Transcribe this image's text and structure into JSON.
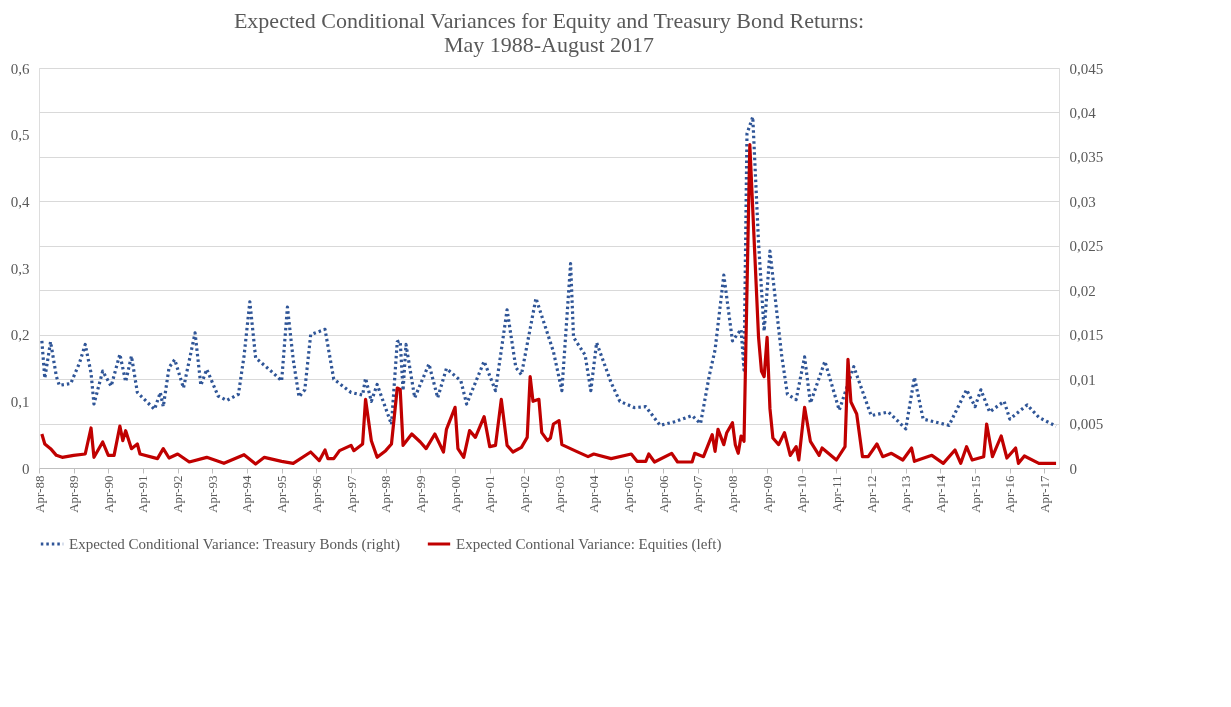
{
  "chart_data": {
    "type": "line",
    "title": "Expected Conditional Variances for Equity and Treasury Bond Returns:\nMay 1988-August 2017",
    "xlim": [
      "1988-04",
      "2017-09"
    ],
    "xticks": [
      {
        "value": "1988-04",
        "label": "Apr-88"
      },
      {
        "value": "1989-04",
        "label": "Apr-89"
      },
      {
        "value": "1990-04",
        "label": "Apr-90"
      },
      {
        "value": "1991-04",
        "label": "Apr-91"
      },
      {
        "value": "1992-04",
        "label": "Apr-92"
      },
      {
        "value": "1993-04",
        "label": "Apr-93"
      },
      {
        "value": "1994-04",
        "label": "Apr-94"
      },
      {
        "value": "1995-04",
        "label": "Apr-95"
      },
      {
        "value": "1996-04",
        "label": "Apr-96"
      },
      {
        "value": "1997-04",
        "label": "Apr-97"
      },
      {
        "value": "1998-04",
        "label": "Apr-98"
      },
      {
        "value": "1999-04",
        "label": "Apr-99"
      },
      {
        "value": "2000-04",
        "label": "Apr-00"
      },
      {
        "value": "2001-04",
        "label": "Apr-01"
      },
      {
        "value": "2002-04",
        "label": "Apr-02"
      },
      {
        "value": "2003-04",
        "label": "Apr-03"
      },
      {
        "value": "2004-04",
        "label": "Apr-04"
      },
      {
        "value": "2005-04",
        "label": "Apr-05"
      },
      {
        "value": "2006-04",
        "label": "Apr-06"
      },
      {
        "value": "2007-04",
        "label": "Apr-07"
      },
      {
        "value": "2008-04",
        "label": "Apr-08"
      },
      {
        "value": "2009-04",
        "label": "Apr-09"
      },
      {
        "value": "2010-04",
        "label": "Apr-10"
      },
      {
        "value": "2011-04",
        "label": "Apr-11"
      },
      {
        "value": "2012-04",
        "label": "Apr-12"
      },
      {
        "value": "2013-04",
        "label": "Apr-13"
      },
      {
        "value": "2014-04",
        "label": "Apr-14"
      },
      {
        "value": "2015-04",
        "label": "Apr-15"
      },
      {
        "value": "2016-04",
        "label": "Apr-16"
      },
      {
        "value": "2017-04",
        "label": "Apr-17"
      }
    ],
    "ylim": [
      0,
      0.6
    ],
    "yticks": [
      {
        "value": 0,
        "label": "0"
      },
      {
        "value": 0.1,
        "label": "0,1"
      },
      {
        "value": 0.2,
        "label": "0,2"
      },
      {
        "value": 0.3,
        "label": "0,3"
      },
      {
        "value": 0.4,
        "label": "0,4"
      },
      {
        "value": 0.5,
        "label": "0,5"
      },
      {
        "value": 0.6,
        "label": "0,6"
      }
    ],
    "y2lim": [
      0,
      0.045
    ],
    "y2ticks": [
      {
        "value": 0,
        "label": "0"
      },
      {
        "value": 0.005,
        "label": "0,005"
      },
      {
        "value": 0.01,
        "label": "0,01"
      },
      {
        "value": 0.015,
        "label": "0,015"
      },
      {
        "value": 0.02,
        "label": "0,02"
      },
      {
        "value": 0.025,
        "label": "0,025"
      },
      {
        "value": 0.03,
        "label": "0,03"
      },
      {
        "value": 0.035,
        "label": "0,035"
      },
      {
        "value": 0.04,
        "label": "0,04"
      },
      {
        "value": 0.045,
        "label": "0,045"
      }
    ],
    "grid": true,
    "legend": "bottom",
    "series": [
      {
        "name": "Expected Conditional Variance: Treasury Bonds (right)",
        "color": "#2f5597",
        "axis": "y2",
        "line_style": "dotted",
        "x": [
          "1988-05",
          "1988-06",
          "1988-08",
          "1988-10",
          "1988-11",
          "1989-03",
          "1989-06",
          "1989-08",
          "1989-10",
          "1989-11",
          "1990-02",
          "1990-05",
          "1990-08",
          "1990-10",
          "1990-12",
          "1991-02",
          "1991-08",
          "1991-10",
          "1991-11",
          "1992-01",
          "1992-03",
          "1992-06",
          "1992-10",
          "1992-12",
          "1993-02",
          "1993-06",
          "1993-09",
          "1994-01",
          "1994-03",
          "1994-05",
          "1994-07",
          "1995-01",
          "1995-04",
          "1995-06",
          "1995-08",
          "1995-10",
          "1995-12",
          "1996-02",
          "1996-07",
          "1996-10",
          "1997-04",
          "1997-08",
          "1997-09",
          "1997-11",
          "1998-01",
          "1998-06",
          "1998-08",
          "1998-09",
          "1998-10",
          "1998-11",
          "1999-02",
          "1999-07",
          "1999-10",
          "2000-01",
          "2000-06",
          "2000-08",
          "2001-02",
          "2001-06",
          "2001-10",
          "2002-01",
          "2002-03",
          "2002-08",
          "2003-02",
          "2003-05",
          "2003-08",
          "2003-09",
          "2004-01",
          "2004-03",
          "2004-05",
          "2004-10",
          "2005-01",
          "2005-06",
          "2005-10",
          "2006-03",
          "2006-08",
          "2007-02",
          "2007-05",
          "2007-08",
          "2007-10",
          "2008-01",
          "2008-04",
          "2008-07",
          "2008-08",
          "2008-09",
          "2008-11",
          "2009-01",
          "2009-03",
          "2009-05",
          "2009-09",
          "2009-11",
          "2010-02",
          "2010-05",
          "2010-07",
          "2010-12",
          "2011-05",
          "2011-10",
          "2012-04",
          "2012-10",
          "2013-04",
          "2013-07",
          "2013-10",
          "2014-07",
          "2015-01",
          "2015-04",
          "2015-06",
          "2015-09",
          "2016-02",
          "2016-04",
          "2016-10",
          "2017-02",
          "2017-08"
        ],
        "values": [
          0.0143,
          0.0101,
          0.0142,
          0.0103,
          0.0093,
          0.0095,
          0.0118,
          0.0139,
          0.0107,
          0.0072,
          0.0109,
          0.0092,
          0.0128,
          0.0097,
          0.0126,
          0.0085,
          0.0066,
          0.0085,
          0.0069,
          0.0113,
          0.0122,
          0.009,
          0.0152,
          0.0093,
          0.0111,
          0.0081,
          0.0076,
          0.0083,
          0.0126,
          0.0187,
          0.0124,
          0.0107,
          0.0098,
          0.0181,
          0.0122,
          0.008,
          0.0088,
          0.015,
          0.0156,
          0.01,
          0.0085,
          0.0082,
          0.0101,
          0.0075,
          0.0094,
          0.0049,
          0.0142,
          0.0143,
          0.0087,
          0.0139,
          0.0079,
          0.0117,
          0.0079,
          0.0112,
          0.0098,
          0.0072,
          0.012,
          0.0087,
          0.0178,
          0.0113,
          0.0105,
          0.0191,
          0.0131,
          0.0087,
          0.023,
          0.0147,
          0.0127,
          0.0087,
          0.0141,
          0.0096,
          0.0075,
          0.0068,
          0.0069,
          0.0048,
          0.0052,
          0.0059,
          0.005,
          0.0104,
          0.0133,
          0.0217,
          0.0143,
          0.0156,
          0.011,
          0.0376,
          0.0395,
          0.0253,
          0.0154,
          0.0244,
          0.0127,
          0.0083,
          0.0077,
          0.0125,
          0.0073,
          0.012,
          0.0065,
          0.0114,
          0.0059,
          0.0063,
          0.0044,
          0.0102,
          0.0055,
          0.0048,
          0.0088,
          0.0069,
          0.0088,
          0.0063,
          0.0075,
          0.0055,
          0.0071,
          0.0057,
          0.0047
        ]
      },
      {
        "name": "Expected Contional Variance: Equities (left)",
        "color": "#c00000",
        "line_style": "solid",
        "x": [
          "1988-05",
          "1988-06",
          "1988-08",
          "1988-10",
          "1988-12",
          "1989-04",
          "1989-08",
          "1989-10",
          "1989-11",
          "1990-02",
          "1990-04",
          "1990-06",
          "1990-08",
          "1990-09",
          "1990-10",
          "1990-12",
          "1991-02",
          "1991-03",
          "1991-09",
          "1991-11",
          "1992-01",
          "1992-04",
          "1992-08",
          "1993-02",
          "1993-08",
          "1994-03",
          "1994-07",
          "1994-10",
          "1995-04",
          "1995-08",
          "1996-02",
          "1996-05",
          "1996-07",
          "1996-08",
          "1996-10",
          "1996-12",
          "1997-04",
          "1997-05",
          "1997-08",
          "1997-09",
          "1997-11",
          "1998-01",
          "1998-04",
          "1998-06",
          "1998-08",
          "1998-09",
          "1998-10",
          "1999-01",
          "1999-04",
          "1999-06",
          "1999-09",
          "1999-12",
          "2000-01",
          "2000-04",
          "2000-05",
          "2000-07",
          "2000-09",
          "2000-11",
          "2001-02",
          "2001-04",
          "2001-06",
          "2001-08",
          "2001-10",
          "2001-12",
          "2002-03",
          "2002-05",
          "2002-06",
          "2002-07",
          "2002-09",
          "2002-10",
          "2002-12",
          "2003-01",
          "2003-02",
          "2003-04",
          "2003-05",
          "2003-10",
          "2004-02",
          "2004-04",
          "2004-10",
          "2005-05",
          "2005-07",
          "2005-10",
          "2005-11",
          "2006-01",
          "2006-07",
          "2006-09",
          "2007-02",
          "2007-03",
          "2007-06",
          "2007-09",
          "2007-10",
          "2007-11",
          "2008-01",
          "2008-02",
          "2008-04",
          "2008-05",
          "2008-06",
          "2008-07",
          "2008-08",
          "2008-10",
          "2009-01",
          "2009-02",
          "2009-03",
          "2009-04",
          "2009-05",
          "2009-06",
          "2009-08",
          "2009-10",
          "2009-12",
          "2010-02",
          "2010-03",
          "2010-05",
          "2010-07",
          "2010-10",
          "2010-11",
          "2011-04",
          "2011-07",
          "2011-08",
          "2011-09",
          "2011-11",
          "2012-01",
          "2012-03",
          "2012-06",
          "2012-08",
          "2012-11",
          "2013-03",
          "2013-06",
          "2013-07",
          "2014-01",
          "2014-05",
          "2014-09",
          "2014-11",
          "2015-01",
          "2015-03",
          "2015-07",
          "2015-08",
          "2015-10",
          "2016-01",
          "2016-03",
          "2016-06",
          "2016-07",
          "2016-09",
          "2017-02",
          "2017-08"
        ],
        "values": [
          0.051,
          0.036,
          0.029,
          0.019,
          0.016,
          0.019,
          0.021,
          0.06,
          0.016,
          0.039,
          0.019,
          0.019,
          0.063,
          0.041,
          0.056,
          0.029,
          0.036,
          0.021,
          0.014,
          0.029,
          0.015,
          0.021,
          0.009,
          0.016,
          0.007,
          0.02,
          0.006,
          0.016,
          0.01,
          0.007,
          0.024,
          0.011,
          0.027,
          0.014,
          0.014,
          0.026,
          0.034,
          0.026,
          0.036,
          0.103,
          0.041,
          0.016,
          0.026,
          0.036,
          0.12,
          0.118,
          0.034,
          0.051,
          0.039,
          0.029,
          0.051,
          0.024,
          0.058,
          0.091,
          0.029,
          0.016,
          0.056,
          0.046,
          0.077,
          0.032,
          0.034,
          0.103,
          0.034,
          0.024,
          0.031,
          0.046,
          0.137,
          0.1,
          0.103,
          0.053,
          0.041,
          0.045,
          0.066,
          0.071,
          0.035,
          0.025,
          0.017,
          0.021,
          0.014,
          0.021,
          0.01,
          0.01,
          0.021,
          0.009,
          0.022,
          0.009,
          0.009,
          0.022,
          0.017,
          0.05,
          0.025,
          0.058,
          0.035,
          0.053,
          0.068,
          0.035,
          0.022,
          0.048,
          0.04,
          0.485,
          0.196,
          0.145,
          0.137,
          0.196,
          0.089,
          0.045,
          0.035,
          0.053,
          0.019,
          0.032,
          0.012,
          0.091,
          0.04,
          0.019,
          0.03,
          0.012,
          0.032,
          0.163,
          0.099,
          0.081,
          0.017,
          0.017,
          0.036,
          0.017,
          0.022,
          0.012,
          0.03,
          0.01,
          0.019,
          0.007,
          0.027,
          0.007,
          0.032,
          0.012,
          0.017,
          0.066,
          0.017,
          0.048,
          0.015,
          0.03,
          0.007,
          0.018,
          0.007,
          0.007
        ]
      }
    ]
  }
}
